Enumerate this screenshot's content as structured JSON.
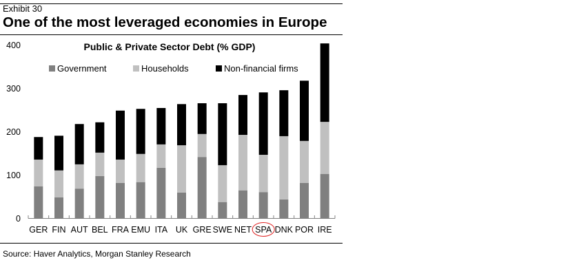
{
  "header": {
    "exhibit": "Exhibit 30",
    "title": "One of the most leveraged economies in Europe"
  },
  "footer": {
    "source": "Source: Haver Analytics, Morgan Stanley Research"
  },
  "chart_data": {
    "type": "bar",
    "stacked": true,
    "title": "Public & Private Sector Debt (% GDP)",
    "xlabel": "",
    "ylabel": "",
    "ylim": [
      0,
      400
    ],
    "yticks": [
      0,
      100,
      200,
      300,
      400
    ],
    "grid": false,
    "legend_position": "top",
    "categories": [
      "GER",
      "FIN",
      "AUT",
      "BEL",
      "FRA",
      "EMU",
      "ITA",
      "UK",
      "GRE",
      "SWE",
      "NET",
      "SPA",
      "DNK",
      "POR",
      "IRE"
    ],
    "series": [
      {
        "name": "Government",
        "color": "#808080",
        "values": [
          73,
          48,
          68,
          97,
          81,
          83,
          116,
          59,
          141,
          37,
          64,
          60,
          43,
          81,
          102
        ]
      },
      {
        "name": "Households",
        "color": "#c0c0c0",
        "values": [
          62,
          62,
          56,
          54,
          54,
          65,
          54,
          109,
          53,
          85,
          128,
          86,
          146,
          97,
          120
        ]
      },
      {
        "name": "Non-financial firms",
        "color": "#000000",
        "values": [
          52,
          80,
          93,
          70,
          113,
          104,
          84,
          95,
          71,
          143,
          92,
          144,
          106,
          139,
          181
        ]
      }
    ],
    "annotations": [
      {
        "type": "circle",
        "target_category": "SPA",
        "color": "#e02020"
      }
    ]
  }
}
